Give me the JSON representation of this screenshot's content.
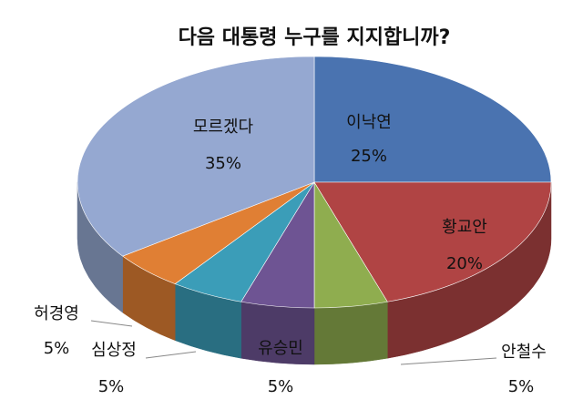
{
  "chart_data": {
    "type": "pie",
    "title": "다음 대통령 누구를 지지합니까?",
    "categories": [
      "이낙연",
      "황교안",
      "안철수",
      "유승민",
      "심상정",
      "허경영",
      "모르겠다"
    ],
    "values": [
      25,
      20,
      5,
      5,
      5,
      5,
      35
    ],
    "value_labels": [
      "25%",
      "20%",
      "5%",
      "5%",
      "5%",
      "5%",
      "35%"
    ],
    "colors": [
      "#4a73b0",
      "#b04444",
      "#8fad4f",
      "#6e5493",
      "#3b9db8",
      "#e07f34",
      "#95a8d1"
    ]
  }
}
